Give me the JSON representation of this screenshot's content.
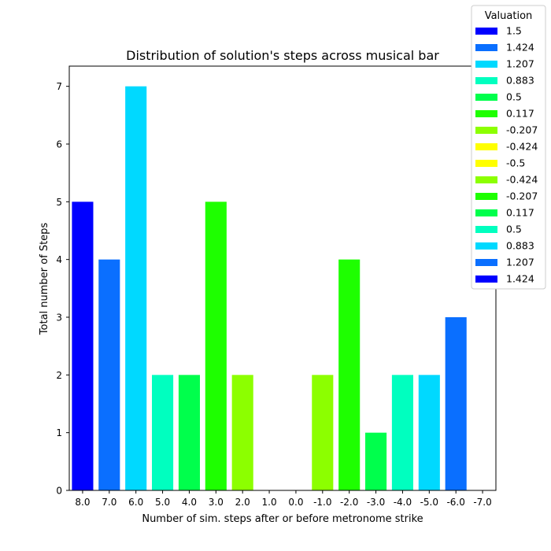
{
  "chart_data": {
    "type": "bar",
    "title": "Distribution of solution's steps across musical bar",
    "xlabel": "Number of sim. steps after or before metronome strike",
    "ylabel": "Total number of Steps",
    "categories": [
      "8.0",
      "7.0",
      "6.0",
      "5.0",
      "4.0",
      "3.0",
      "2.0",
      "1.0",
      "0.0",
      "-1.0",
      "-2.0",
      "-3.0",
      "-4.0",
      "-5.0",
      "-6.0",
      "-7.0"
    ],
    "values": [
      5,
      4,
      7,
      2,
      2,
      5,
      2,
      0,
      0,
      2,
      4,
      1,
      2,
      2,
      3,
      0
    ],
    "colors": [
      "#0000ff",
      "#0a6fff",
      "#00d9ff",
      "#00ffbf",
      "#00ff4c",
      "#1eff00",
      "#8cff00",
      "#ffff00",
      "#ffff00",
      "#8cff00",
      "#1eff00",
      "#00ff4c",
      "#00ffbf",
      "#00d9ff",
      "#0a6fff",
      "#0000ff"
    ],
    "ylim": [
      0,
      7.35
    ],
    "yticks": [
      "0",
      "1",
      "2",
      "3",
      "4",
      "5",
      "6",
      "7"
    ],
    "grid": false,
    "legend": {
      "title": "Valuation",
      "placement": "top-right",
      "entries": [
        "1.5",
        "1.424",
        "1.207",
        "0.883",
        "0.5",
        "0.117",
        "-0.207",
        "-0.424",
        "-0.5",
        "-0.424",
        "-0.207",
        "0.117",
        "0.5",
        "0.883",
        "1.207",
        "1.424"
      ]
    }
  }
}
